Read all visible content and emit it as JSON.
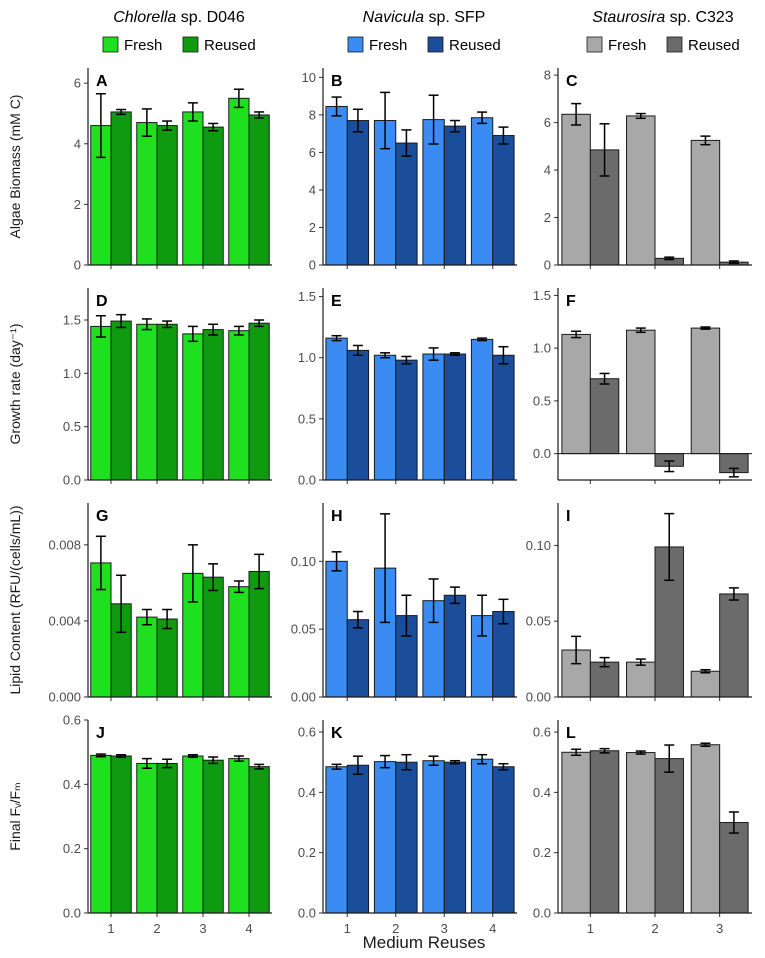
{
  "figure": {
    "x_axis_label": "Medium Reuses",
    "row_ylabels": [
      "Algae Biomass (mM C)",
      "Growth rate (day⁻¹)",
      "Lipid Content (RFU/(cells/mL))",
      "Final Fᵥ/Fₘ"
    ],
    "columns": [
      {
        "species_italic": "Chlorella",
        "species_rest": " sp. D046",
        "legend": [
          "Fresh",
          "Reused"
        ],
        "colors": {
          "fresh": "#1ee01e",
          "reused": "#0f9b0f"
        }
      },
      {
        "species_italic": "Navicula",
        "species_rest": " sp. SFP",
        "legend": [
          "Fresh",
          "Reused"
        ],
        "colors": {
          "fresh": "#3a8cf2",
          "reused": "#1a4e9a"
        }
      },
      {
        "species_italic": "Staurosira",
        "species_rest": " sp. C323",
        "legend": [
          "Fresh",
          "Reused"
        ],
        "colors": {
          "fresh": "#a8a8a8",
          "reused": "#6b6b6b"
        }
      }
    ]
  },
  "chart_data": [
    {
      "panel": "A",
      "type": "bar",
      "categories": [
        "1",
        "2",
        "3",
        "4"
      ],
      "ylim": [
        0,
        6.5
      ],
      "yticks": [
        0,
        2,
        4,
        6
      ],
      "series": [
        {
          "name": "Fresh",
          "values": [
            4.6,
            4.7,
            5.05,
            5.5
          ],
          "err": [
            1.05,
            0.45,
            0.3,
            0.3
          ]
        },
        {
          "name": "Reused",
          "values": [
            5.05,
            4.6,
            4.55,
            4.95
          ],
          "err": [
            0.08,
            0.15,
            0.12,
            0.1
          ]
        }
      ]
    },
    {
      "panel": "B",
      "type": "bar",
      "categories": [
        "1",
        "2",
        "3",
        "4"
      ],
      "ylim": [
        0,
        10.5
      ],
      "yticks": [
        0,
        2,
        4,
        6,
        8,
        10
      ],
      "series": [
        {
          "name": "Fresh",
          "values": [
            8.45,
            7.7,
            7.75,
            7.85
          ],
          "err": [
            0.5,
            1.5,
            1.3,
            0.3
          ]
        },
        {
          "name": "Reused",
          "values": [
            7.7,
            6.5,
            7.4,
            6.9
          ],
          "err": [
            0.6,
            0.7,
            0.3,
            0.45
          ]
        }
      ]
    },
    {
      "panel": "C",
      "type": "bar",
      "categories": [
        "1",
        "2",
        "3"
      ],
      "ylim": [
        0,
        8.3
      ],
      "yticks": [
        0,
        2,
        4,
        6,
        8
      ],
      "series": [
        {
          "name": "Fresh",
          "values": [
            6.35,
            6.28,
            5.25
          ],
          "err": [
            0.45,
            0.1,
            0.18
          ]
        },
        {
          "name": "Reused",
          "values": [
            4.85,
            0.28,
            0.12
          ],
          "err": [
            1.1,
            0.05,
            0.05
          ]
        }
      ]
    },
    {
      "panel": "D",
      "type": "bar",
      "categories": [
        "1",
        "2",
        "3",
        "4"
      ],
      "ylim": [
        0,
        1.8
      ],
      "yticks": [
        0,
        0.5,
        1,
        1.5
      ],
      "ydec": 1,
      "series": [
        {
          "name": "Fresh",
          "values": [
            1.44,
            1.46,
            1.37,
            1.4
          ],
          "err": [
            0.1,
            0.05,
            0.07,
            0.04
          ]
        },
        {
          "name": "Reused",
          "values": [
            1.49,
            1.46,
            1.41,
            1.47
          ],
          "err": [
            0.06,
            0.03,
            0.05,
            0.03
          ]
        }
      ]
    },
    {
      "panel": "E",
      "type": "bar",
      "categories": [
        "1",
        "2",
        "3",
        "4"
      ],
      "ylim": [
        0,
        1.57
      ],
      "yticks": [
        0,
        0.5,
        1,
        1.5
      ],
      "ydec": 1,
      "series": [
        {
          "name": "Fresh",
          "values": [
            1.16,
            1.02,
            1.03,
            1.15
          ],
          "err": [
            0.02,
            0.02,
            0.05,
            0.01
          ]
        },
        {
          "name": "Reused",
          "values": [
            1.06,
            0.98,
            1.03,
            1.02
          ],
          "err": [
            0.04,
            0.03,
            0.01,
            0.07
          ]
        }
      ]
    },
    {
      "panel": "F",
      "type": "bar",
      "categories": [
        "1",
        "2",
        "3"
      ],
      "ylim": [
        -0.25,
        1.57
      ],
      "yticks": [
        0,
        0.5,
        1,
        1.5
      ],
      "ydec": 1,
      "series": [
        {
          "name": "Fresh",
          "values": [
            1.13,
            1.17,
            1.19
          ],
          "err": [
            0.03,
            0.02,
            0.01
          ]
        },
        {
          "name": "Reused",
          "values": [
            0.71,
            -0.12,
            -0.18
          ],
          "err": [
            0.05,
            0.05,
            0.04
          ]
        }
      ]
    },
    {
      "panel": "G",
      "type": "bar",
      "categories": [
        "1",
        "2",
        "3",
        "4"
      ],
      "ylim": [
        0,
        0.0102
      ],
      "yticks": [
        0,
        0.004,
        0.008
      ],
      "ydec": 3,
      "series": [
        {
          "name": "Fresh",
          "values": [
            0.00705,
            0.0042,
            0.0065,
            0.0058
          ],
          "err": [
            0.0014,
            0.0004,
            0.0015,
            0.0003
          ]
        },
        {
          "name": "Reused",
          "values": [
            0.0049,
            0.0041,
            0.0063,
            0.0066
          ],
          "err": [
            0.0015,
            0.0005,
            0.0007,
            0.0009
          ]
        }
      ]
    },
    {
      "panel": "H",
      "type": "bar",
      "categories": [
        "1",
        "2",
        "3",
        "4"
      ],
      "ylim": [
        0,
        0.143
      ],
      "yticks": [
        0,
        0.05,
        0.1
      ],
      "ydec": 2,
      "series": [
        {
          "name": "Fresh",
          "values": [
            0.1,
            0.095,
            0.071,
            0.06
          ],
          "err": [
            0.007,
            0.04,
            0.016,
            0.015
          ]
        },
        {
          "name": "Reused",
          "values": [
            0.057,
            0.06,
            0.075,
            0.063
          ],
          "err": [
            0.006,
            0.015,
            0.006,
            0.009
          ]
        }
      ]
    },
    {
      "panel": "I",
      "type": "bar",
      "categories": [
        "1",
        "2",
        "3"
      ],
      "ylim": [
        0,
        0.128
      ],
      "yticks": [
        0,
        0.05,
        0.1
      ],
      "ydec": 2,
      "series": [
        {
          "name": "Fresh",
          "values": [
            0.031,
            0.023,
            0.017
          ],
          "err": [
            0.009,
            0.002,
            0.001
          ]
        },
        {
          "name": "Reused",
          "values": [
            0.023,
            0.099,
            0.068
          ],
          "err": [
            0.003,
            0.022,
            0.004
          ]
        }
      ]
    },
    {
      "panel": "J",
      "type": "bar",
      "categories": [
        "1",
        "2",
        "3",
        "4"
      ],
      "ylim": [
        0,
        0.6
      ],
      "yticks": [
        0,
        0.2,
        0.4,
        0.6
      ],
      "ydec": 1,
      "series": [
        {
          "name": "Fresh",
          "values": [
            0.49,
            0.465,
            0.488,
            0.48
          ],
          "err": [
            0.004,
            0.015,
            0.004,
            0.008
          ]
        },
        {
          "name": "Reused",
          "values": [
            0.488,
            0.465,
            0.475,
            0.455
          ],
          "err": [
            0.004,
            0.013,
            0.01,
            0.007
          ]
        }
      ]
    },
    {
      "panel": "K",
      "type": "bar",
      "categories": [
        "1",
        "2",
        "3",
        "4"
      ],
      "ylim": [
        0,
        0.64
      ],
      "yticks": [
        0,
        0.2,
        0.4,
        0.6
      ],
      "ydec": 1,
      "series": [
        {
          "name": "Fresh",
          "values": [
            0.485,
            0.502,
            0.505,
            0.51
          ],
          "err": [
            0.008,
            0.02,
            0.015,
            0.015
          ]
        },
        {
          "name": "Reused",
          "values": [
            0.49,
            0.5,
            0.5,
            0.485
          ],
          "err": [
            0.03,
            0.025,
            0.005,
            0.01
          ]
        }
      ]
    },
    {
      "panel": "L",
      "type": "bar",
      "categories": [
        "1",
        "2",
        "3"
      ],
      "ylim": [
        0,
        0.64
      ],
      "yticks": [
        0,
        0.2,
        0.4,
        0.6
      ],
      "ydec": 1,
      "series": [
        {
          "name": "Fresh",
          "values": [
            0.533,
            0.532,
            0.558
          ],
          "err": [
            0.01,
            0.005,
            0.005
          ]
        },
        {
          "name": "Reused",
          "values": [
            0.538,
            0.512,
            0.3
          ],
          "err": [
            0.007,
            0.045,
            0.035
          ]
        }
      ]
    }
  ],
  "x_ticks_4": [
    "1",
    "2",
    "3",
    "4"
  ],
  "x_ticks_3": [
    "1",
    "2",
    "3"
  ]
}
